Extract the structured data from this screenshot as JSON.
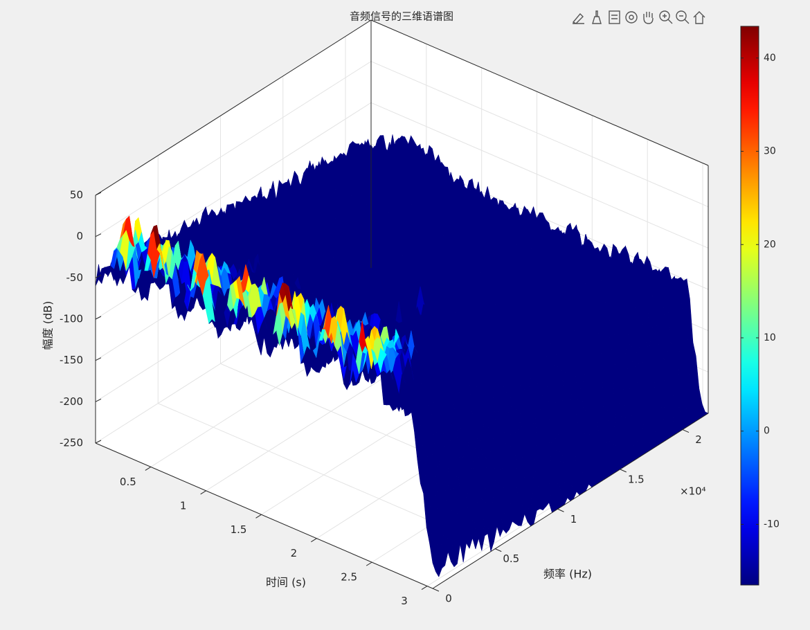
{
  "chart_data": {
    "type": "surface3d",
    "title": "音频信号的三维语谱图",
    "x_label": "时间 (s)",
    "y_label": "频率 (Hz)",
    "z_label": "幅度 (dB)",
    "xlim": [
      0,
      3.05
    ],
    "xticks": [
      0.5,
      1,
      1.5,
      2,
      2.5,
      3
    ],
    "ylim": [
      0,
      22050
    ],
    "yticks": [
      0,
      {
        "value": 5000,
        "label": "0.5"
      },
      {
        "value": 10000,
        "label": "1"
      },
      {
        "value": 15000,
        "label": "1.5"
      },
      {
        "value": 20000,
        "label": "2"
      }
    ],
    "y_exponent": "×10⁴",
    "zlim": [
      -250,
      50
    ],
    "zticks": [
      -250,
      -200,
      -150,
      -100,
      -50,
      0,
      50
    ],
    "colormap": "jet",
    "clim": [
      -16.5,
      43.4
    ],
    "cticks": [
      -10,
      0,
      10,
      20,
      30,
      40
    ],
    "grid": true
  }
}
